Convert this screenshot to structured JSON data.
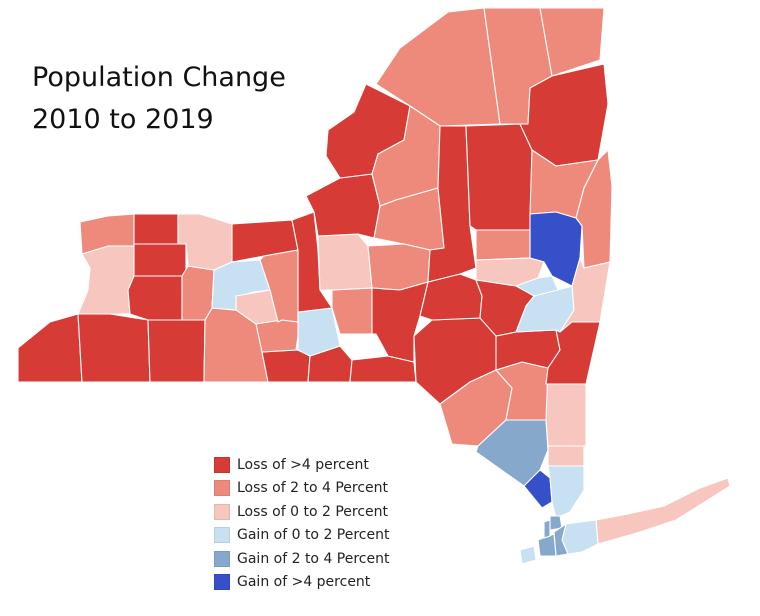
{
  "title": {
    "line1": "Population Change",
    "line2": "2010 to 2019"
  },
  "colors": {
    "loss_gt4": "#d63b36",
    "loss_2_4": "#ee8a7c",
    "loss_0_2": "#f7c7bf",
    "gain_0_2": "#c8e1f2",
    "gain_2_4": "#86a9cb",
    "gain_gt4": "#3550c8"
  },
  "legend": [
    {
      "key": "loss_gt4",
      "label": "Loss of >4 percent"
    },
    {
      "key": "loss_2_4",
      "label": "Loss of 2 to 4 Percent"
    },
    {
      "key": "loss_0_2",
      "label": "Loss of 0 to 2 Percent"
    },
    {
      "key": "gain_0_2",
      "label": "Gain of 0 to 2 Percent"
    },
    {
      "key": "gain_2_4",
      "label": "Gain of 2 to 4 Percent"
    },
    {
      "key": "gain_gt4",
      "label": "Gain of >4 percent"
    }
  ],
  "regions": [
    {
      "id": "chautauqua",
      "cat": "loss_gt4"
    },
    {
      "id": "cattaraugus",
      "cat": "loss_gt4"
    },
    {
      "id": "allegany",
      "cat": "loss_gt4"
    },
    {
      "id": "steuben",
      "cat": "loss_2_4"
    },
    {
      "id": "chemung",
      "cat": "loss_gt4"
    },
    {
      "id": "tioga",
      "cat": "loss_gt4"
    },
    {
      "id": "broome",
      "cat": "loss_gt4"
    },
    {
      "id": "delaware",
      "cat": "loss_gt4"
    },
    {
      "id": "sullivan",
      "cat": "loss_2_4"
    },
    {
      "id": "orange",
      "cat": "gain_2_4"
    },
    {
      "id": "rockland",
      "cat": "gain_gt4"
    },
    {
      "id": "westchester",
      "cat": "gain_0_2"
    },
    {
      "id": "putnam",
      "cat": "loss_0_2"
    },
    {
      "id": "dutchess",
      "cat": "loss_0_2"
    },
    {
      "id": "ulster",
      "cat": "loss_2_4"
    },
    {
      "id": "greene",
      "cat": "loss_gt4"
    },
    {
      "id": "columbia",
      "cat": "loss_gt4"
    },
    {
      "id": "erie",
      "cat": "loss_0_2"
    },
    {
      "id": "niagara",
      "cat": "loss_2_4"
    },
    {
      "id": "orleans",
      "cat": "loss_gt4"
    },
    {
      "id": "genesee",
      "cat": "loss_gt4"
    },
    {
      "id": "wyoming",
      "cat": "loss_gt4"
    },
    {
      "id": "livingston",
      "cat": "loss_2_4"
    },
    {
      "id": "monroe",
      "cat": "loss_0_2"
    },
    {
      "id": "ontario",
      "cat": "gain_0_2"
    },
    {
      "id": "wayne",
      "cat": "loss_gt4"
    },
    {
      "id": "yates",
      "cat": "loss_0_2"
    },
    {
      "id": "schuyler",
      "cat": "loss_2_4"
    },
    {
      "id": "seneca",
      "cat": "loss_2_4"
    },
    {
      "id": "tompkins",
      "cat": "gain_0_2"
    },
    {
      "id": "cayuga",
      "cat": "loss_gt4"
    },
    {
      "id": "cortland",
      "cat": "loss_2_4"
    },
    {
      "id": "onondaga",
      "cat": "loss_0_2"
    },
    {
      "id": "oswego",
      "cat": "loss_gt4"
    },
    {
      "id": "jefferson",
      "cat": "loss_gt4"
    },
    {
      "id": "st_lawrence",
      "cat": "loss_2_4"
    },
    {
      "id": "lewis",
      "cat": "loss_2_4"
    },
    {
      "id": "oneida",
      "cat": "loss_2_4"
    },
    {
      "id": "madison",
      "cat": "loss_2_4"
    },
    {
      "id": "chenango",
      "cat": "loss_gt4"
    },
    {
      "id": "otsego",
      "cat": "loss_gt4"
    },
    {
      "id": "herkimer",
      "cat": "loss_gt4"
    },
    {
      "id": "hamilton",
      "cat": "loss_gt4"
    },
    {
      "id": "franklin",
      "cat": "loss_2_4"
    },
    {
      "id": "clinton",
      "cat": "loss_2_4"
    },
    {
      "id": "essex",
      "cat": "loss_gt4"
    },
    {
      "id": "warren",
      "cat": "loss_2_4"
    },
    {
      "id": "washington",
      "cat": "loss_2_4"
    },
    {
      "id": "saratoga",
      "cat": "gain_gt4"
    },
    {
      "id": "fulton",
      "cat": "loss_2_4"
    },
    {
      "id": "montgomery",
      "cat": "loss_0_2"
    },
    {
      "id": "schenectady",
      "cat": "gain_0_2"
    },
    {
      "id": "albany",
      "cat": "gain_0_2"
    },
    {
      "id": "rensselaer",
      "cat": "loss_0_2"
    },
    {
      "id": "schoharie",
      "cat": "loss_gt4"
    },
    {
      "id": "suffolk",
      "cat": "loss_0_2"
    },
    {
      "id": "nassau",
      "cat": "gain_0_2"
    },
    {
      "id": "bronx",
      "cat": "gain_2_4"
    },
    {
      "id": "queens",
      "cat": "gain_2_4"
    },
    {
      "id": "kings",
      "cat": "gain_2_4"
    },
    {
      "id": "richmond",
      "cat": "gain_0_2"
    },
    {
      "id": "new_york",
      "cat": "gain_2_4"
    }
  ]
}
